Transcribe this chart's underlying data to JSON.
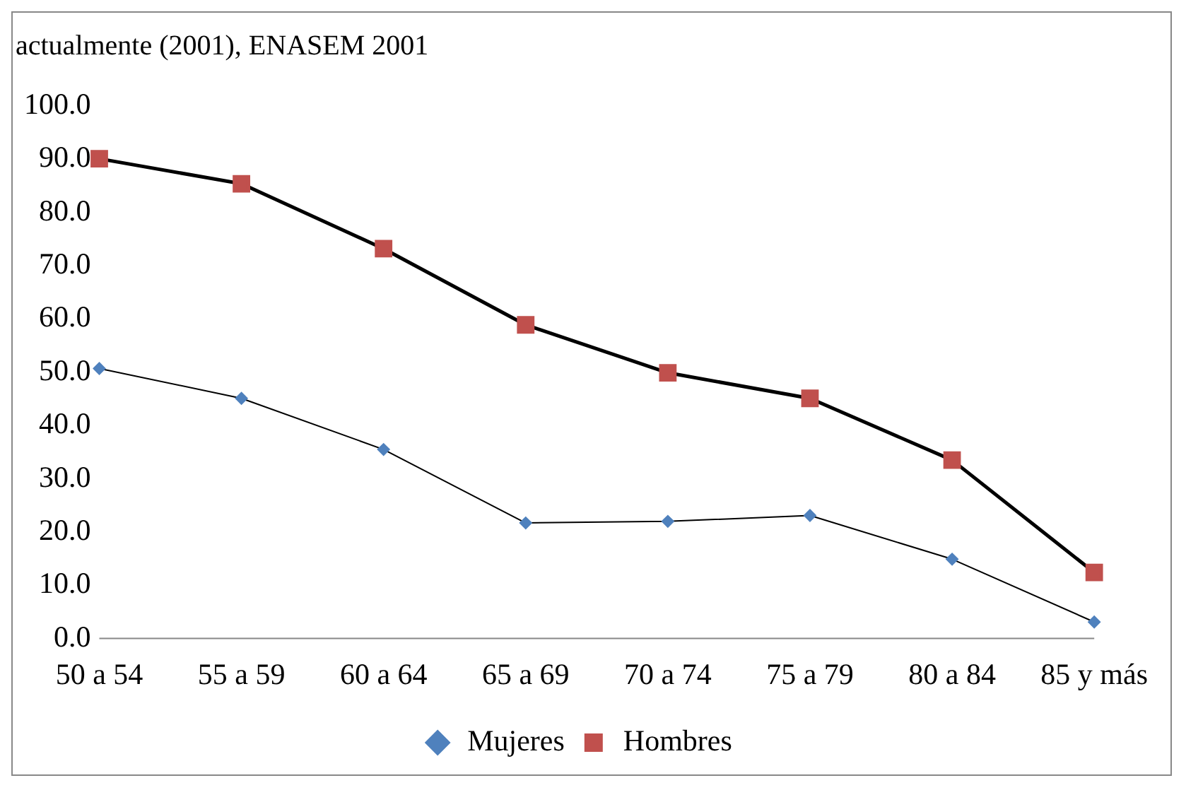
{
  "chart_data": {
    "type": "line",
    "title": "actualmente (2001), ENASEM 2001",
    "categories": [
      "50 a 54",
      "55 a 59",
      "60 a 64",
      "65 a 69",
      "70 a 74",
      "75 a 79",
      "80 a 84",
      "85 y más"
    ],
    "series": [
      {
        "name": "Mujeres",
        "color": "#4f81bd",
        "marker": "diamond",
        "values": [
          50.7,
          45.1,
          35.5,
          21.7,
          22.0,
          23.1,
          14.9,
          3.1
        ]
      },
      {
        "name": "Hombres",
        "color": "#c0504d",
        "marker": "square",
        "values": [
          90.1,
          85.4,
          73.2,
          58.9,
          49.9,
          45.1,
          33.5,
          12.4
        ]
      }
    ],
    "ylim": [
      0,
      100
    ],
    "yticks": [
      {
        "value": 0,
        "label": "0.0"
      },
      {
        "value": 10,
        "label": "10.0"
      },
      {
        "value": 20,
        "label": "20.0"
      },
      {
        "value": 30,
        "label": "30.0"
      },
      {
        "value": 40,
        "label": "40.0"
      },
      {
        "value": 50,
        "label": "50.0"
      },
      {
        "value": 60,
        "label": "60.0"
      },
      {
        "value": 70,
        "label": "70.0"
      },
      {
        "value": 80,
        "label": "80.0"
      },
      {
        "value": 90,
        "label": "90.0"
      },
      {
        "value": 100,
        "label": "100.0"
      }
    ],
    "grid": false,
    "legend": "bottom"
  }
}
